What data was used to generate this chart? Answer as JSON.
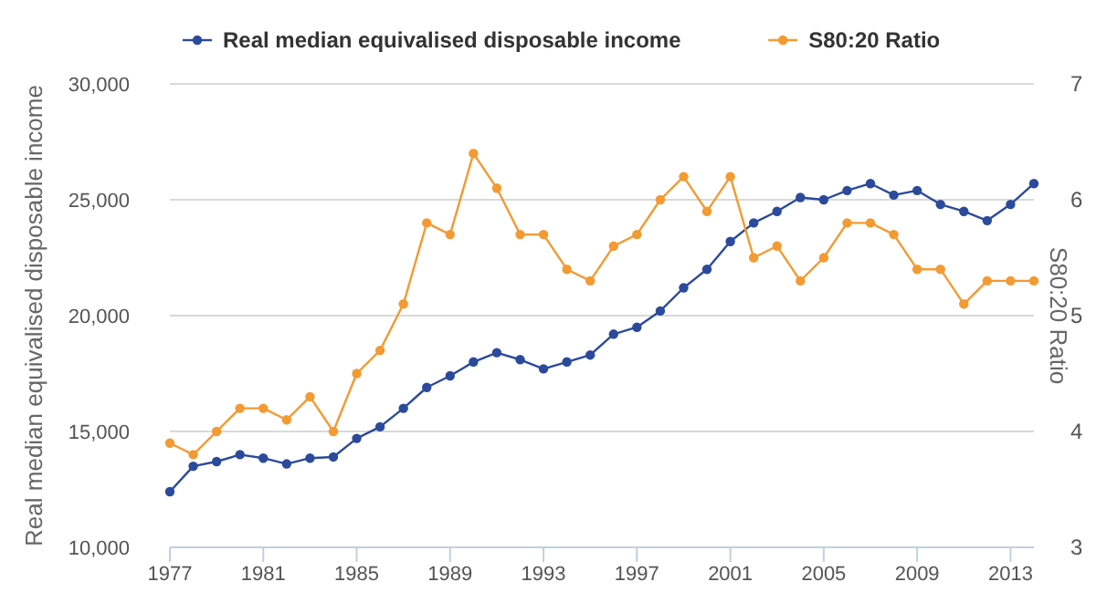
{
  "chart_data": {
    "type": "line",
    "x": [
      1977,
      1978,
      1979,
      1980,
      1981,
      1982,
      1983,
      1984,
      1985,
      1986,
      1987,
      1988,
      1989,
      1990,
      1991,
      1992,
      1993,
      1994,
      1995,
      1996,
      1997,
      1998,
      1999,
      2000,
      2001,
      2002,
      2003,
      2004,
      2005,
      2006,
      2007,
      2008,
      2009,
      2010,
      2011,
      2012,
      2013,
      2014
    ],
    "series": [
      {
        "name": "Real median equivalised disposable income",
        "color": "#2b4a9b",
        "values": [
          12400,
          13500,
          13700,
          14000,
          13850,
          13600,
          13850,
          13900,
          14700,
          15200,
          16000,
          16900,
          17400,
          18000,
          18400,
          18100,
          17700,
          18000,
          18300,
          19200,
          19500,
          20200,
          21200,
          22000,
          23200,
          24000,
          24500,
          25100,
          25000,
          25400,
          25700,
          25200,
          25400,
          24800,
          24500,
          24100,
          24800,
          25700
        ]
      },
      {
        "name": "S80:20 Ratio",
        "color": "#f39a32",
        "axis": "y2",
        "values": [
          3.9,
          3.8,
          4.0,
          4.2,
          4.2,
          4.1,
          4.3,
          4.0,
          4.5,
          4.7,
          5.1,
          5.8,
          5.7,
          6.4,
          6.1,
          5.7,
          5.7,
          5.4,
          5.3,
          5.6,
          5.7,
          6.0,
          6.2,
          5.9,
          6.2,
          5.5,
          5.6,
          5.3,
          5.5,
          5.8,
          5.8,
          5.7,
          5.4,
          5.4,
          5.1,
          5.3,
          5.3,
          5.3
        ]
      }
    ],
    "ylabel": "Real median equivalised disposable income",
    "y2label": "S80:20 Ratio",
    "xlim": [
      1977,
      2014
    ],
    "xticks": [
      1977,
      1981,
      1985,
      1989,
      1993,
      1997,
      2001,
      2005,
      2009,
      2013
    ],
    "ylim": [
      10000,
      30000
    ],
    "yticks": [
      {
        "value": 10000,
        "label": "10,000"
      },
      {
        "value": 15000,
        "label": "15,000"
      },
      {
        "value": 20000,
        "label": "20,000"
      },
      {
        "value": 25000,
        "label": "25,000"
      },
      {
        "value": 30000,
        "label": "30,000"
      }
    ],
    "y2lim": [
      3,
      7
    ],
    "y2ticks": [
      3,
      4,
      5,
      6,
      7
    ],
    "grid": "y",
    "legend": "top",
    "marker": "circle",
    "line_style": "solid"
  }
}
